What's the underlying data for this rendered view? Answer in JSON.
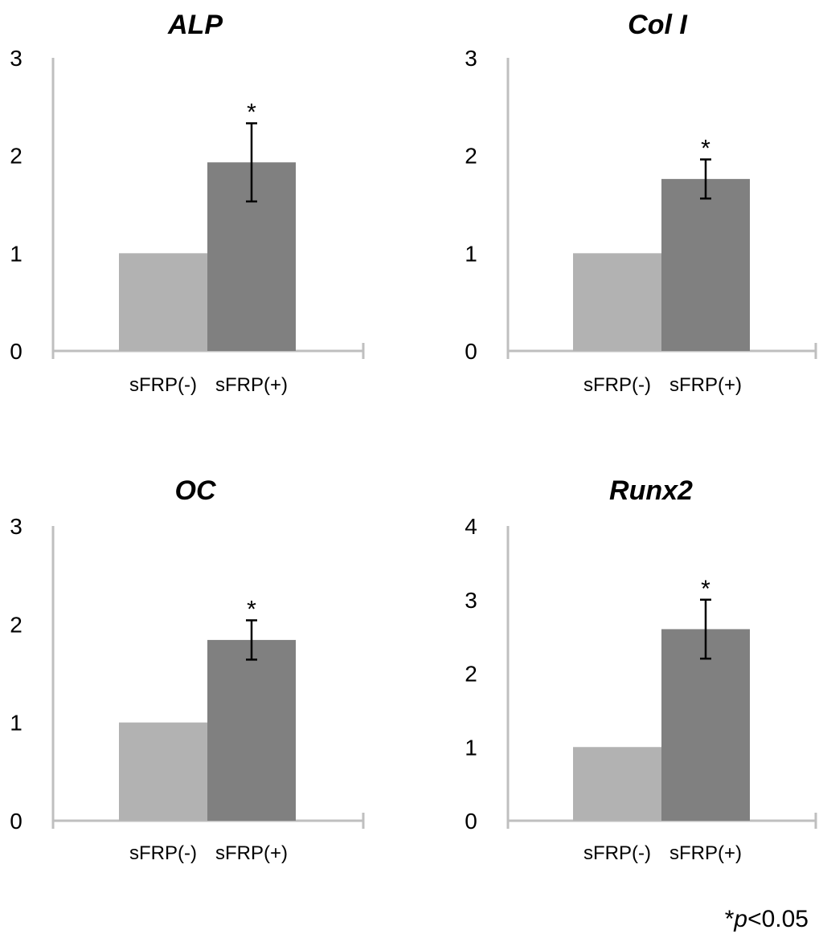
{
  "chart_data": [
    {
      "type": "bar",
      "title": "ALP",
      "categories": [
        "sFRP(-)",
        "sFRP(+)"
      ],
      "values": [
        1.0,
        1.93
      ],
      "error": [
        null,
        0.4
      ],
      "significance": [
        null,
        "*"
      ],
      "ylim": [
        0,
        3
      ],
      "yticks": [
        "0",
        "1",
        "2",
        "3"
      ],
      "grid": false
    },
    {
      "type": "bar",
      "title": "Col  I",
      "categories": [
        "sFRP(-)",
        "sFRP(+)"
      ],
      "values": [
        1.0,
        1.76
      ],
      "error": [
        null,
        0.2
      ],
      "significance": [
        null,
        "*"
      ],
      "ylim": [
        0,
        3
      ],
      "yticks": [
        "0",
        "1",
        "2",
        "3"
      ],
      "grid": false
    },
    {
      "type": "bar",
      "title": "OC",
      "categories": [
        "sFRP(-)",
        "sFRP(+)"
      ],
      "values": [
        1.0,
        1.84
      ],
      "error": [
        null,
        0.2
      ],
      "significance": [
        null,
        "*"
      ],
      "ylim": [
        0,
        3
      ],
      "yticks": [
        "0",
        "1",
        "2",
        "3"
      ],
      "grid": false
    },
    {
      "type": "bar",
      "title": "Runx2",
      "categories": [
        "sFRP(-)",
        "sFRP(+)"
      ],
      "values": [
        1.0,
        2.6
      ],
      "error": [
        null,
        0.4
      ],
      "significance": [
        null,
        "*"
      ],
      "ylim": [
        0,
        4
      ],
      "yticks": [
        "0",
        "1",
        "2",
        "3",
        "4"
      ],
      "grid": false
    }
  ],
  "colors": {
    "bar_negative": "#b2b2b2",
    "bar_positive": "#808080",
    "axis": "#bfbfbf",
    "error_bar": "#000000"
  },
  "footnote": {
    "mark": "*",
    "p": "p",
    "rest": "<0.05"
  }
}
